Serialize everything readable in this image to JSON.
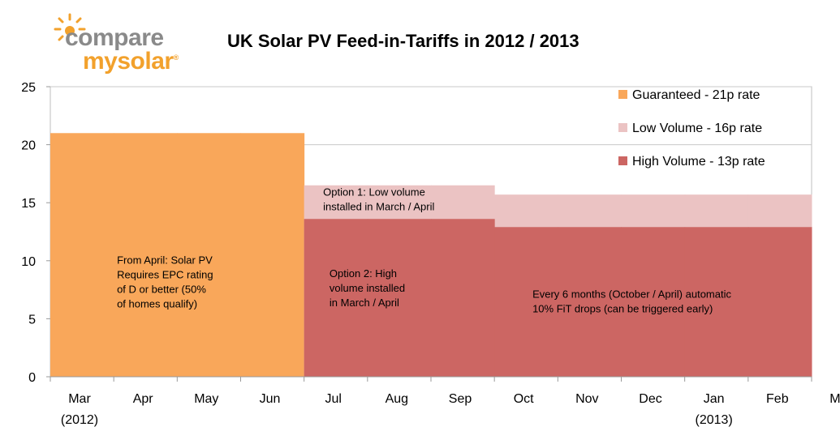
{
  "logo": {
    "text_top": "compare",
    "text_bottom": "mysolar",
    "trademark": "®",
    "colors": {
      "grey": "#8a8a8a",
      "orange": "#f2a12c"
    }
  },
  "chart_data": {
    "type": "area",
    "title": "UK Solar PV Feed-in-Tariffs in 2012 / 2013",
    "xlabel": "",
    "ylabel": "",
    "ylim": [
      0,
      25
    ],
    "yticks": [
      "0",
      "5",
      "10",
      "15",
      "20",
      "25"
    ],
    "categories": [
      "Mar",
      "Apr",
      "May",
      "Jun",
      "Jul",
      "Aug",
      "Sep",
      "Oct",
      "Nov",
      "Dec",
      "Jan",
      "Feb",
      "Mar"
    ],
    "category_sublabels": [
      "(2012)",
      "",
      "",
      "",
      "",
      "",
      "",
      "",
      "",
      "",
      "(2013)",
      "",
      ""
    ],
    "grid": "horizontal",
    "legend_position": "top-right",
    "series": [
      {
        "name": "Guaranteed - 21p rate",
        "color": "#f9a75a",
        "values": [
          21,
          21,
          21,
          21,
          null,
          null,
          null,
          null,
          null,
          null,
          null,
          null,
          null
        ]
      },
      {
        "name": "Low Volume - 16p rate",
        "color": "#ebc3c3",
        "values": [
          null,
          null,
          null,
          null,
          16.5,
          16.5,
          16.5,
          15.7,
          15.7,
          15.7,
          15.7,
          15.7,
          15.7
        ]
      },
      {
        "name": "High Volume - 13p rate",
        "color": "#cc6663",
        "values": [
          null,
          null,
          null,
          null,
          13.6,
          13.6,
          13.6,
          12.9,
          12.9,
          12.9,
          12.9,
          12.9,
          12.9
        ]
      }
    ],
    "annotations": [
      {
        "lines": [
          "From April: Solar PV",
          "Requires EPC rating",
          "of D or better (50%",
          "of homes qualify)"
        ],
        "month": 1.05,
        "y": 9.75
      },
      {
        "lines": [
          "Option 1: Low volume",
          "installed in March / April"
        ],
        "month": 4.3,
        "y": 15.6
      },
      {
        "lines": [
          "Option 2: High",
          "volume installed",
          "in March / April"
        ],
        "month": 4.4,
        "y": 8.6
      },
      {
        "lines": [
          "Every 6 months (October / April) automatic",
          "10% FiT drops (can be triggered early)"
        ],
        "month": 7.6,
        "y": 6.8
      }
    ]
  }
}
